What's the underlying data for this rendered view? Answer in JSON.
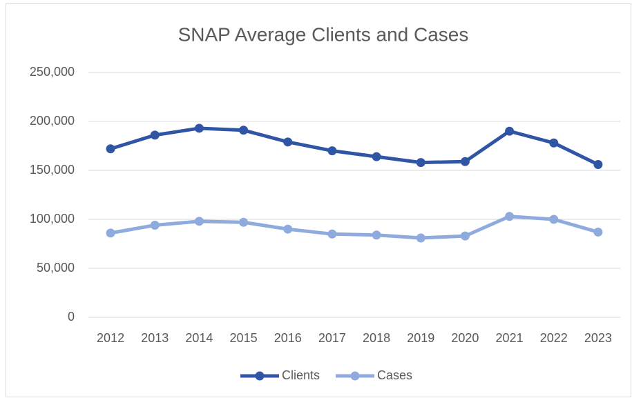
{
  "chart_data": {
    "type": "line",
    "title": "SNAP Average Clients and Cases",
    "categories": [
      "2012",
      "2013",
      "2014",
      "2015",
      "2016",
      "2017",
      "2018",
      "2019",
      "2020",
      "2021",
      "2022",
      "2023"
    ],
    "series": [
      {
        "name": "Clients",
        "color": "#2f55a4",
        "values": [
          172000,
          186000,
          193000,
          191000,
          179000,
          170000,
          164000,
          158000,
          159000,
          190000,
          178000,
          156000
        ]
      },
      {
        "name": "Cases",
        "color": "#8faadc",
        "values": [
          86000,
          94000,
          98000,
          97000,
          90000,
          85000,
          84000,
          81000,
          83000,
          103000,
          100000,
          87000
        ]
      }
    ],
    "ylim": [
      0,
      250000
    ],
    "yticks": [
      0,
      {
        "value": 50000,
        "label": "50,000"
      },
      {
        "value": 100000,
        "label": "100,000"
      },
      {
        "value": 150000,
        "label": "150,000"
      },
      {
        "value": 200000,
        "label": "200,000"
      },
      {
        "value": 250000,
        "label": "250,000"
      }
    ],
    "grid": true,
    "legend": "bottom"
  }
}
